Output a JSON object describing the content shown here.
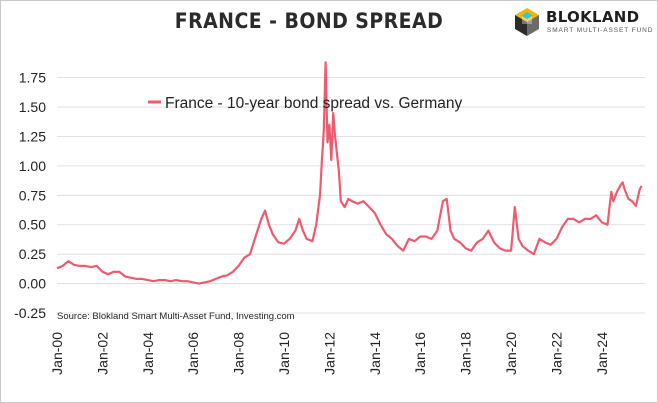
{
  "header": {
    "title": "FRANCE - BOND SPREAD",
    "brand_name": "BLOKLAND",
    "brand_tagline": "SMART MULTI-ASSET FUND",
    "brand_icon": "cube-logo-icon"
  },
  "colors": {
    "series": "#ef5b6e",
    "grid": "#d9d9d9",
    "text": "#222222"
  },
  "chart_data": {
    "type": "line",
    "title": "FRANCE - BOND SPREAD",
    "xlabel": "",
    "ylabel": "",
    "ylim": [
      -0.25,
      1.9
    ],
    "yticks": [
      -0.25,
      0.0,
      0.25,
      0.5,
      0.75,
      1.0,
      1.25,
      1.5,
      1.75
    ],
    "ytick_labels": [
      "-0.25",
      "0.00",
      "0.25",
      "0.50",
      "0.75",
      "1.00",
      "1.25",
      "1.50",
      "1.75"
    ],
    "xlim": [
      2000.0,
      2025.9
    ],
    "xtick_labels": [
      "Jan-00",
      "Jan-02",
      "Jan-04",
      "Jan-06",
      "Jan-08",
      "Jan-10",
      "Jan-12",
      "Jan-14",
      "Jan-16",
      "Jan-18",
      "Jan-20",
      "Jan-22",
      "Jan-24"
    ],
    "grid": "horizontal",
    "legend": "top-left",
    "source": "Source: Blokland Smart Multi-Asset Fund, Investing.com",
    "series": [
      {
        "name": "France - 10-year bond spread vs. Germany",
        "color": "#ef5b6e",
        "points": [
          [
            "Jan-00",
            0.13
          ],
          [
            "Apr-00",
            0.15
          ],
          [
            "Jul-00",
            0.19
          ],
          [
            "Oct-00",
            0.16
          ],
          [
            "Jan-01",
            0.15
          ],
          [
            "Apr-01",
            0.15
          ],
          [
            "Jul-01",
            0.14
          ],
          [
            "Oct-01",
            0.15
          ],
          [
            "Jan-02",
            0.1
          ],
          [
            "Apr-02",
            0.08
          ],
          [
            "Jul-02",
            0.1
          ],
          [
            "Oct-02",
            0.1
          ],
          [
            "Jan-03",
            0.06
          ],
          [
            "Apr-03",
            0.05
          ],
          [
            "Jul-03",
            0.04
          ],
          [
            "Oct-03",
            0.04
          ],
          [
            "Jan-04",
            0.03
          ],
          [
            "Apr-04",
            0.02
          ],
          [
            "Jul-04",
            0.03
          ],
          [
            "Oct-04",
            0.03
          ],
          [
            "Jan-05",
            0.02
          ],
          [
            "Apr-05",
            0.03
          ],
          [
            "Jul-05",
            0.02
          ],
          [
            "Oct-05",
            0.02
          ],
          [
            "Jan-06",
            0.01
          ],
          [
            "Apr-06",
            0.0
          ],
          [
            "Jul-06",
            0.01
          ],
          [
            "Oct-06",
            0.02
          ],
          [
            "Jan-07",
            0.04
          ],
          [
            "Apr-07",
            0.06
          ],
          [
            "Jul-07",
            0.07
          ],
          [
            "Oct-07",
            0.1
          ],
          [
            "Jan-08",
            0.15
          ],
          [
            "Apr-08",
            0.22
          ],
          [
            "Jul-08",
            0.25
          ],
          [
            "Oct-08",
            0.4
          ],
          [
            "Jan-09",
            0.55
          ],
          [
            "Mar-09",
            0.62
          ],
          [
            "May-09",
            0.5
          ],
          [
            "Jul-09",
            0.42
          ],
          [
            "Oct-09",
            0.35
          ],
          [
            "Jan-10",
            0.34
          ],
          [
            "Apr-10",
            0.38
          ],
          [
            "Jul-10",
            0.45
          ],
          [
            "Sep-10",
            0.55
          ],
          [
            "Nov-10",
            0.45
          ],
          [
            "Jan-11",
            0.38
          ],
          [
            "Apr-11",
            0.36
          ],
          [
            "Jun-11",
            0.5
          ],
          [
            "Aug-11",
            0.75
          ],
          [
            "Sep-11",
            1.05
          ],
          [
            "Oct-11",
            1.3
          ],
          [
            "Nov-11",
            1.88
          ],
          [
            "Dec-11",
            1.2
          ],
          [
            "Jan-12",
            1.35
          ],
          [
            "Feb-12",
            1.05
          ],
          [
            "Mar-12",
            1.45
          ],
          [
            "Apr-12",
            1.25
          ],
          [
            "May-12",
            1.1
          ],
          [
            "Jun-12",
            0.95
          ],
          [
            "Jul-12",
            0.7
          ],
          [
            "Sep-12",
            0.65
          ],
          [
            "Nov-12",
            0.72
          ],
          [
            "Jan-13",
            0.7
          ],
          [
            "Apr-13",
            0.68
          ],
          [
            "Jul-13",
            0.7
          ],
          [
            "Oct-13",
            0.65
          ],
          [
            "Jan-14",
            0.6
          ],
          [
            "Apr-14",
            0.5
          ],
          [
            "Jul-14",
            0.42
          ],
          [
            "Oct-14",
            0.38
          ],
          [
            "Jan-15",
            0.32
          ],
          [
            "Apr-15",
            0.28
          ],
          [
            "Jul-15",
            0.38
          ],
          [
            "Oct-15",
            0.36
          ],
          [
            "Jan-16",
            0.4
          ],
          [
            "Apr-16",
            0.4
          ],
          [
            "Jul-16",
            0.38
          ],
          [
            "Oct-16",
            0.45
          ],
          [
            "Jan-17",
            0.7
          ],
          [
            "Mar-17",
            0.72
          ],
          [
            "May-17",
            0.45
          ],
          [
            "Jul-17",
            0.38
          ],
          [
            "Oct-17",
            0.35
          ],
          [
            "Jan-18",
            0.3
          ],
          [
            "Apr-18",
            0.28
          ],
          [
            "Jul-18",
            0.35
          ],
          [
            "Oct-18",
            0.38
          ],
          [
            "Jan-19",
            0.45
          ],
          [
            "Apr-19",
            0.35
          ],
          [
            "Jul-19",
            0.3
          ],
          [
            "Oct-19",
            0.28
          ],
          [
            "Jan-20",
            0.28
          ],
          [
            "Mar-20",
            0.65
          ],
          [
            "May-20",
            0.38
          ],
          [
            "Jul-20",
            0.32
          ],
          [
            "Oct-20",
            0.28
          ],
          [
            "Jan-21",
            0.25
          ],
          [
            "Apr-21",
            0.38
          ],
          [
            "Jul-21",
            0.35
          ],
          [
            "Oct-21",
            0.33
          ],
          [
            "Jan-22",
            0.38
          ],
          [
            "Apr-22",
            0.48
          ],
          [
            "Jul-22",
            0.55
          ],
          [
            "Oct-22",
            0.55
          ],
          [
            "Jan-23",
            0.52
          ],
          [
            "Apr-23",
            0.55
          ],
          [
            "Jul-23",
            0.55
          ],
          [
            "Oct-23",
            0.58
          ],
          [
            "Jan-24",
            0.52
          ],
          [
            "Apr-24",
            0.5
          ],
          [
            "Jun-24",
            0.78
          ],
          [
            "Jul-24",
            0.7
          ],
          [
            "Sep-24",
            0.78
          ],
          [
            "Nov-24",
            0.84
          ],
          [
            "Dec-24",
            0.86
          ],
          [
            "Jan-25",
            0.8
          ],
          [
            "Mar-25",
            0.72
          ],
          [
            "May-25",
            0.7
          ],
          [
            "Jul-25",
            0.66
          ],
          [
            "Sep-25",
            0.8
          ],
          [
            "Oct-25",
            0.83
          ]
        ]
      }
    ]
  }
}
